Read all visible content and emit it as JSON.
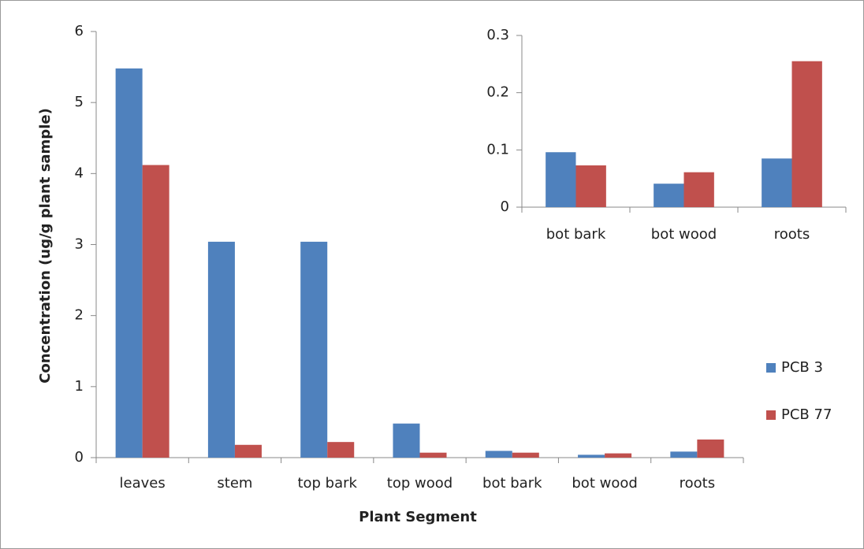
{
  "chart_data": [
    {
      "type": "bar",
      "x_label": "Plant Segment",
      "y_label": "Concentration (ug/g plant sample)",
      "categories": [
        "leaves",
        "stem",
        "top bark",
        "top wood",
        "bot bark",
        "bot wood",
        "roots"
      ],
      "series": [
        {
          "name": "PCB 3",
          "color": "#4f81bd",
          "values": [
            5.48,
            3.04,
            3.04,
            0.48,
            0.095,
            0.04,
            0.085
          ]
        },
        {
          "name": "PCB 77",
          "color": "#c0504d",
          "values": [
            4.12,
            0.18,
            0.22,
            0.07,
            0.07,
            0.06,
            0.255
          ]
        }
      ],
      "ylim": [
        0,
        6
      ],
      "yticks": [
        0,
        1,
        2,
        3,
        4,
        5,
        6
      ],
      "grid": false,
      "legend": "right"
    },
    {
      "type": "bar",
      "categories": [
        "bot bark",
        "bot wood",
        "roots"
      ],
      "series": [
        {
          "color": "#4f81bd",
          "values": [
            0.096,
            0.041,
            0.085
          ]
        },
        {
          "color": "#c0504d",
          "values": [
            0.073,
            0.061,
            0.255
          ]
        }
      ],
      "ylim": [
        0,
        0.3
      ],
      "yticks": [
        0,
        0.1,
        0.2,
        0.3
      ],
      "grid": false
    }
  ]
}
